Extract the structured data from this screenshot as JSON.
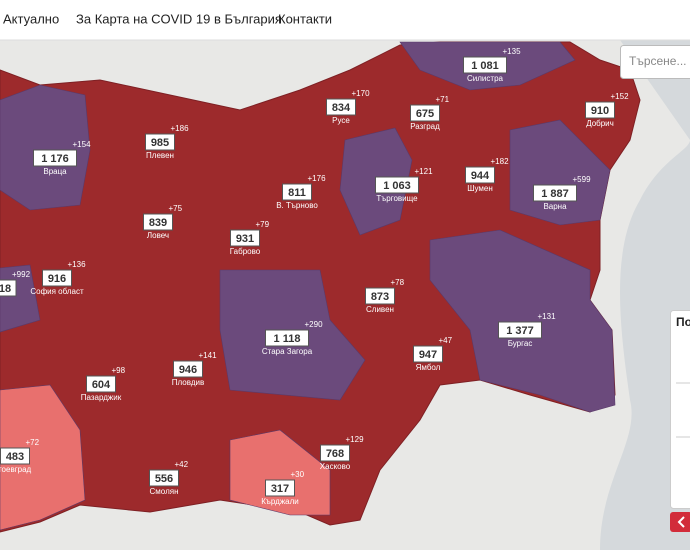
{
  "nav": [
    "Актуално",
    "За Карта на COVID 19 в България",
    "Контакти"
  ],
  "search_placeholder": "Търсене...",
  "panel_title": "По",
  "regions": [
    {
      "name": "Силистра",
      "value": "1 081",
      "change": "+135",
      "color": "#6b4a7c"
    },
    {
      "name": "Русе",
      "value": "834",
      "change": "+170",
      "color": "#9d2a2c"
    },
    {
      "name": "Разград",
      "value": "675",
      "change": "+71",
      "color": "#9d2a2c"
    },
    {
      "name": "Добрич",
      "value": "910",
      "change": "+152",
      "color": "#9d2a2c"
    },
    {
      "name": "Плевен",
      "value": "985",
      "change": "+186",
      "color": "#9d2a2c"
    },
    {
      "name": "Враца",
      "value": "1 176",
      "change": "+154",
      "color": "#6b4a7c"
    },
    {
      "name": "В. Търново",
      "value": "811",
      "change": "+176",
      "color": "#9d2a2c"
    },
    {
      "name": "Търговище",
      "value": "1 063",
      "change": "+121",
      "color": "#6b4a7c"
    },
    {
      "name": "Шумен",
      "value": "944",
      "change": "+182",
      "color": "#9d2a2c"
    },
    {
      "name": "Варна",
      "value": "1 887",
      "change": "+599",
      "color": "#6b4a7c"
    },
    {
      "name": "Ловеч",
      "value": "839",
      "change": "+75",
      "color": "#9d2a2c"
    },
    {
      "name": "Габрово",
      "value": "931",
      "change": "+79",
      "color": "#9d2a2c"
    },
    {
      "name": "София област",
      "value": "916",
      "change": "+136",
      "color": "#9d2a2c"
    },
    {
      "value": "18",
      "change": "+992",
      "color": "#6b4a7c"
    },
    {
      "name": "Сливен",
      "value": "873",
      "change": "+78",
      "color": "#9d2a2c"
    },
    {
      "name": "Стара Загора",
      "value": "1 118",
      "change": "+290",
      "color": "#6b4a7c"
    },
    {
      "name": "Бургас",
      "value": "1 377",
      "change": "+131",
      "color": "#6b4a7c"
    },
    {
      "name": "Пазарджик",
      "value": "604",
      "change": "+98",
      "color": "#9d2a2c"
    },
    {
      "name": "Пловдив",
      "value": "946",
      "change": "+141",
      "color": "#9d2a2c"
    },
    {
      "name": "Ямбол",
      "value": "947",
      "change": "+47",
      "color": "#9d2a2c"
    },
    {
      "name": "гоевград",
      "value": "483",
      "change": "+72",
      "color": "#e8706e"
    },
    {
      "name": "Смолян",
      "value": "556",
      "change": "+42",
      "color": "#9d2a2c"
    },
    {
      "name": "Кърджали",
      "value": "317",
      "change": "+30",
      "color": "#e8706e"
    },
    {
      "name": "Хасково",
      "value": "768",
      "change": "+129",
      "color": "#9d2a2c"
    }
  ]
}
